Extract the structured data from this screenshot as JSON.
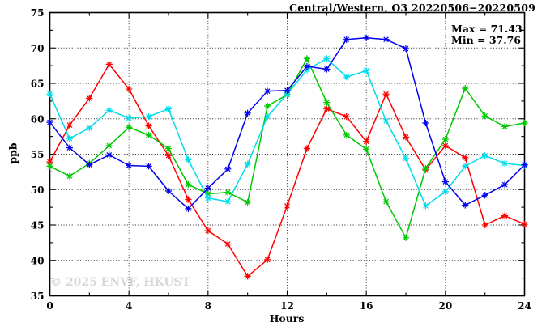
{
  "header": {
    "title": "Central/Western, O3 20220506−20220509"
  },
  "annotations": {
    "max_label": "Max = 71.43",
    "min_label": "Min = 37.76",
    "watermark": "© 2025 ENVF, HKUST"
  },
  "axes": {
    "xlabel": "Hours",
    "ylabel": "ppb"
  },
  "chart_data": {
    "type": "line",
    "title": "Central/Western, O3 20220506−20220509",
    "xlabel": "Hours",
    "ylabel": "ppb",
    "xlim": [
      0,
      24
    ],
    "ylim": [
      35,
      75
    ],
    "x_major_ticks": [
      0,
      4,
      8,
      12,
      16,
      20,
      24
    ],
    "x_minor_tick_step": 2,
    "y_major_ticks": [
      35,
      40,
      45,
      50,
      55,
      60,
      65,
      70,
      75
    ],
    "y_minor_tick_step": 2.5,
    "grid_x": [
      4,
      8,
      12,
      16,
      20
    ],
    "grid_y": [
      40,
      45,
      50,
      55,
      60,
      65,
      70
    ],
    "grid_style": "dotted",
    "legend_position": "none",
    "stats": {
      "max": 71.43,
      "min": 37.76
    },
    "x": [
      0,
      1,
      2,
      3,
      4,
      5,
      6,
      7,
      8,
      9,
      10,
      11,
      12,
      13,
      14,
      15,
      16,
      17,
      18,
      19,
      20,
      21,
      22,
      23,
      24
    ],
    "series": [
      {
        "name": "red-series",
        "color": "#ff0000",
        "values": [
          53.9,
          59.1,
          62.9,
          67.7,
          64.2,
          59.0,
          54.8,
          48.6,
          44.2,
          42.3,
          37.76,
          40.1,
          47.7,
          55.8,
          61.4,
          60.3,
          56.8,
          63.5,
          57.4,
          52.8,
          56.2,
          54.5,
          45.0,
          46.3,
          45.1
        ]
      },
      {
        "name": "green-series",
        "color": "#00c800",
        "values": [
          53.3,
          51.9,
          53.7,
          56.2,
          58.8,
          57.7,
          55.8,
          50.7,
          49.4,
          49.6,
          48.2,
          61.8,
          63.4,
          68.5,
          62.3,
          57.7,
          55.7,
          48.3,
          43.2,
          53.0,
          57.1,
          64.3,
          60.4,
          58.9,
          59.4
        ]
      },
      {
        "name": "cyan-series",
        "color": "#00dde8",
        "values": [
          63.5,
          57.2,
          58.7,
          61.2,
          60.1,
          60.3,
          61.4,
          54.2,
          48.8,
          48.3,
          53.6,
          60.3,
          63.5,
          66.9,
          68.5,
          65.9,
          66.8,
          59.7,
          54.4,
          47.7,
          49.7,
          53.3,
          54.8,
          53.7,
          53.4
        ]
      },
      {
        "name": "blue-series",
        "color": "#0000ee",
        "values": [
          59.5,
          55.9,
          53.5,
          54.9,
          53.4,
          53.3,
          49.8,
          47.3,
          50.2,
          52.9,
          60.8,
          63.9,
          64.0,
          67.4,
          67.0,
          71.2,
          71.43,
          71.2,
          69.9,
          59.4,
          51.1,
          47.8,
          49.2,
          50.7,
          53.5
        ]
      }
    ]
  }
}
